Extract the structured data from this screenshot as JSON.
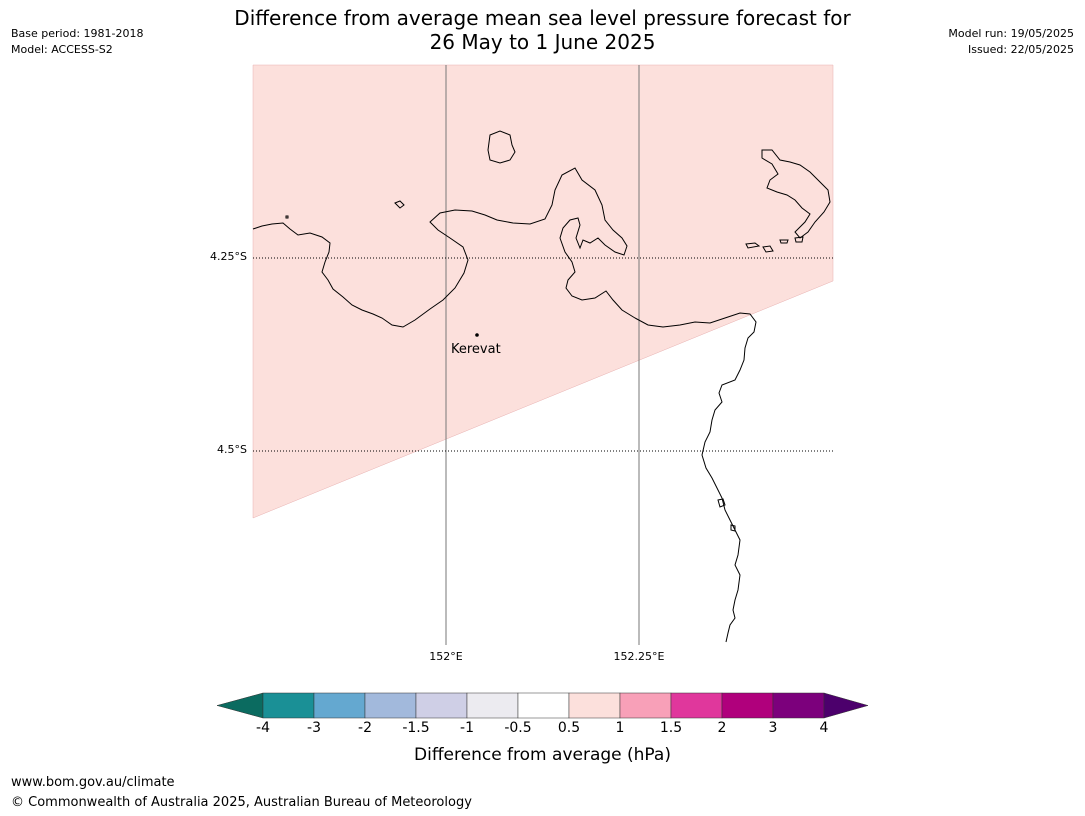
{
  "header": {
    "title_line1": "Difference from average mean sea level pressure forecast for",
    "title_line2": "26 May to 1 June 2025",
    "base_period": "Base period: 1981-2018",
    "model": "Model: ACCESS-S2",
    "model_run": "Model run: 19/05/2025",
    "issued": "Issued: 22/05/2025"
  },
  "map": {
    "lat_labels": [
      "4.25°S",
      "4.5°S"
    ],
    "lon_labels": [
      "152°E",
      "152.25°E"
    ],
    "place_name": "Kerevat",
    "shaded_fill_color": "#fce0dc"
  },
  "colorbar": {
    "ticks": [
      "-4",
      "-3",
      "-2",
      "-1.5",
      "-1",
      "-0.5",
      "0.5",
      "1",
      "1.5",
      "2",
      "3",
      "4"
    ],
    "colors": [
      "#0b6b60",
      "#1a9096",
      "#64a8d0",
      "#a2b9dc",
      "#cfcfe6",
      "#ecebf0",
      "#ffffff",
      "#fce0dc",
      "#f8a0b8",
      "#e0379c",
      "#b0007c",
      "#7c007c",
      "#4c006c"
    ],
    "label": "Difference from average (hPa)"
  },
  "footer": {
    "url": "www.bom.gov.au/climate",
    "copyright": "© Commonwealth of Australia 2025, Australian Bureau of Meteorology"
  }
}
